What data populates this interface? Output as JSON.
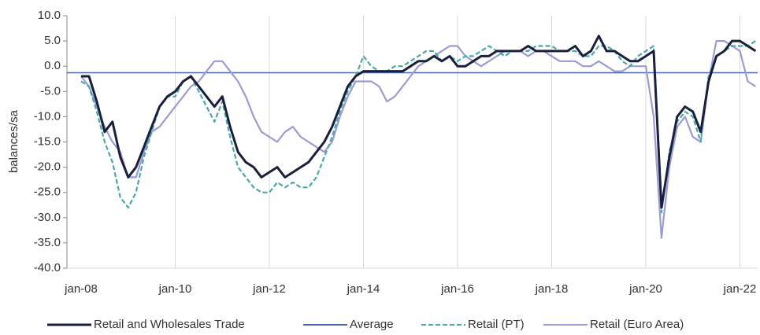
{
  "chart_data": {
    "type": "line",
    "y_label": "balances/sa",
    "categories": [
      "jan-08",
      null,
      null,
      null,
      null,
      null,
      null,
      null,
      null,
      null,
      null,
      null,
      "jan-10",
      null,
      null,
      null,
      null,
      null,
      null,
      null,
      null,
      null,
      null,
      null,
      "jan-12",
      null,
      null,
      null,
      null,
      null,
      null,
      null,
      null,
      null,
      null,
      null,
      "jan-14",
      null,
      null,
      null,
      null,
      null,
      null,
      null,
      null,
      null,
      null,
      null,
      "jan-16",
      null,
      null,
      null,
      null,
      null,
      null,
      null,
      null,
      null,
      null,
      null,
      "jan-18",
      null,
      null,
      null,
      null,
      null,
      null,
      null,
      null,
      null,
      null,
      null,
      "jan-20",
      null,
      null,
      null,
      null,
      null,
      null,
      null,
      null,
      null,
      null,
      null,
      "jan-22",
      null,
      null
    ],
    "series": [
      {
        "name": "Retail and Wholesales Trade",
        "color": "#1a1f3d",
        "dash": false,
        "values": [
          -2,
          -2,
          -7,
          -13,
          -11,
          -18,
          -22,
          -20,
          -16,
          -12,
          -8,
          -6,
          -5,
          -3,
          -2,
          -4,
          -6,
          -8,
          -6,
          -12,
          -17,
          -19,
          -20,
          -22,
          -21,
          -20,
          -22,
          -21,
          -20,
          -19,
          -17,
          -15,
          -12,
          -8,
          -4,
          -2,
          -1,
          -1,
          -1,
          -1,
          -1,
          -1,
          0,
          1,
          1,
          2,
          1,
          2,
          0,
          0,
          1,
          2,
          2,
          3,
          3,
          3,
          3,
          4,
          3,
          3,
          3,
          3,
          3,
          4,
          2,
          3,
          6,
          3,
          3,
          2,
          1,
          1,
          2,
          3,
          -28,
          -18,
          -10,
          -8,
          -9,
          -13,
          -3,
          2,
          3,
          5,
          5,
          4,
          3
        ]
      },
      {
        "name": "Retail (PT)",
        "color": "#4aa8a8",
        "dash": true,
        "values": [
          -3,
          -4,
          -9,
          -15,
          -19,
          -26,
          -28,
          -25,
          -18,
          -13,
          -8,
          -6,
          -6,
          -3,
          -2,
          -5,
          -8,
          -11,
          -7,
          -14,
          -20,
          -22,
          -24,
          -25,
          -25,
          -23,
          -24,
          -23,
          -24,
          -24,
          -22,
          -18,
          -14,
          -9,
          -5,
          -2,
          2,
          0,
          -1,
          -1,
          0,
          0,
          1,
          2,
          3,
          3,
          1,
          2,
          1,
          2,
          2,
          3,
          4,
          3,
          2,
          3,
          3,
          3,
          4,
          4,
          4,
          3,
          3,
          3,
          2,
          2,
          4,
          4,
          3,
          1,
          0,
          2,
          3,
          4,
          -29,
          -17,
          -11,
          -9,
          -10,
          -15,
          -2,
          2,
          3,
          4,
          4,
          4,
          5
        ]
      },
      {
        "name": "Retail (Euro Area)",
        "color": "#9b9bd6",
        "dash": false,
        "values": [
          -2,
          -4,
          -8,
          -12,
          -15,
          -17,
          -22,
          -22,
          -17,
          -13,
          -12,
          -10,
          -8,
          -6,
          -4,
          -3,
          -1,
          1,
          1,
          -1,
          -3,
          -6,
          -10,
          -13,
          -14,
          -15,
          -13,
          -12,
          -14,
          -15,
          -16,
          -17,
          -15,
          -10,
          -6,
          -3,
          -3,
          -3,
          -4,
          -7,
          -6,
          -4,
          -2,
          0,
          1,
          2,
          3,
          4,
          4,
          2,
          1,
          0,
          1,
          2,
          3,
          3,
          3,
          2,
          3,
          3,
          2,
          1,
          1,
          1,
          0,
          0,
          1,
          0,
          -1,
          -1,
          0,
          0,
          0,
          -10,
          -34,
          -20,
          -12,
          -10,
          -14,
          -15,
          -3,
          5,
          5,
          4,
          3,
          -3,
          -4
        ]
      }
    ],
    "average": {
      "name": "Average",
      "color": "#4a67ad",
      "value": -1.3
    },
    "ylim": [
      -40,
      10
    ],
    "yticks": [
      {
        "value": 10,
        "label": "10.0"
      },
      {
        "value": 5,
        "label": "5.0"
      },
      {
        "value": 0,
        "label": "0.0"
      },
      {
        "value": -5,
        "label": "-5.0"
      },
      {
        "value": -10,
        "label": "-10.0"
      },
      {
        "value": -15,
        "label": "-15.0"
      },
      {
        "value": -20,
        "label": "-20.0"
      },
      {
        "value": -25,
        "label": "-25.0"
      },
      {
        "value": -30,
        "label": "-30.0"
      },
      {
        "value": -35,
        "label": "-35.0"
      },
      {
        "value": -40,
        "label": "-40.0"
      }
    ],
    "grid": true
  }
}
